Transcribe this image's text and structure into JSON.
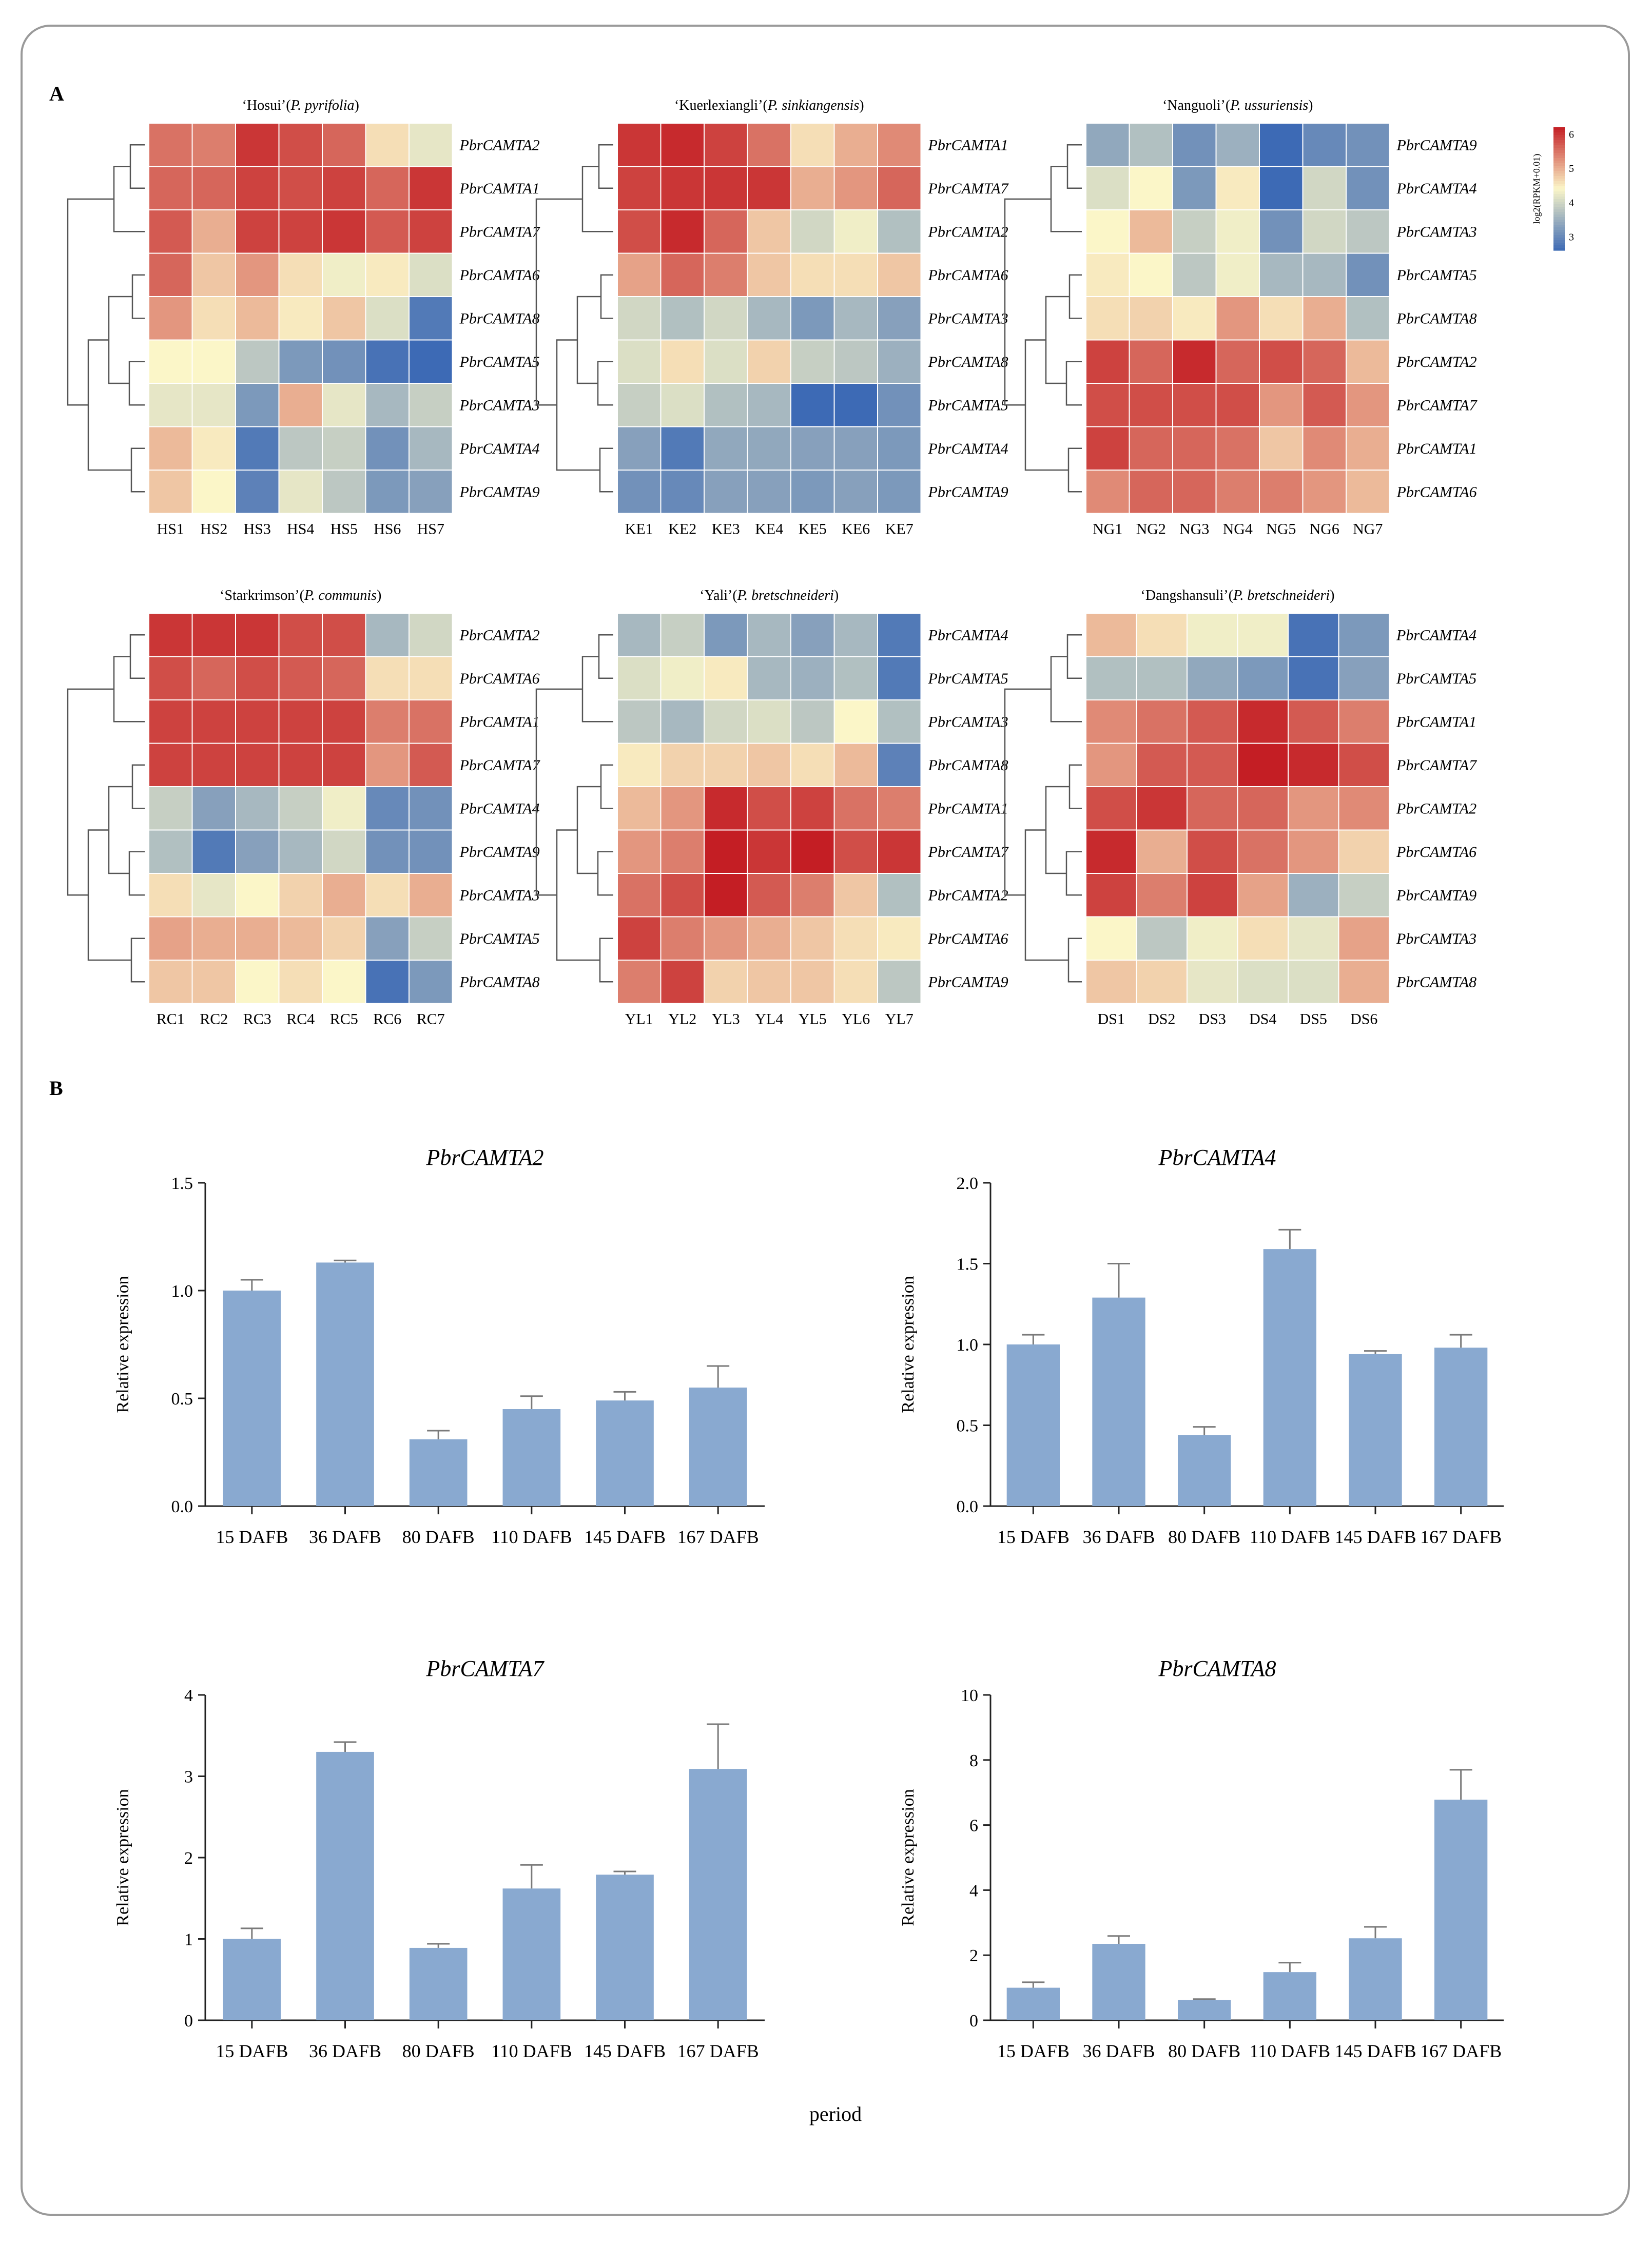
{
  "figure": {
    "panel_a_label": "A",
    "panel_b_label": "B",
    "b_xlabel": "period"
  },
  "colors": {
    "bar": "#89a9d0",
    "heat_low": "#3d6ab5",
    "heat_mid": "#fbf6c8",
    "heat_high": "#c41e24"
  },
  "chart_data": [
    {
      "type": "heatmap",
      "title": "‘Hosui’(P. pyrifolia)",
      "cultivar": "‘Hosui’(",
      "species": "P. pyrifolia",
      "closing": ")",
      "columns": [
        "HS1",
        "HS2",
        "HS3",
        "HS4",
        "HS5",
        "HS6",
        "HS7"
      ],
      "rows": [
        "PbrCAMTA2",
        "PbrCAMTA1",
        "PbrCAMTA7",
        "PbrCAMTA6",
        "PbrCAMTA8",
        "PbrCAMTA5",
        "PbrCAMTA3",
        "PbrCAMTA4",
        "PbrCAMTA9"
      ],
      "values": [
        [
          5.5,
          5.4,
          6.0,
          5.8,
          5.6,
          4.6,
          4.2
        ],
        [
          5.6,
          5.6,
          5.9,
          5.8,
          5.9,
          5.6,
          6.0
        ],
        [
          5.7,
          5.0,
          5.9,
          5.9,
          6.0,
          5.7,
          5.9
        ],
        [
          5.6,
          4.8,
          5.2,
          4.6,
          4.3,
          4.5,
          4.1
        ],
        [
          5.2,
          4.6,
          4.9,
          4.5,
          4.8,
          4.1,
          2.8
        ],
        [
          4.4,
          4.4,
          3.8,
          3.2,
          3.1,
          2.7,
          2.6
        ],
        [
          4.2,
          4.2,
          3.2,
          5.0,
          4.2,
          3.6,
          3.9
        ],
        [
          4.9,
          4.5,
          2.8,
          3.8,
          3.9,
          3.1,
          3.6
        ],
        [
          4.8,
          4.4,
          2.9,
          4.2,
          3.8,
          3.2,
          3.3
        ]
      ],
      "color_range": [
        2.6,
        6.2
      ]
    },
    {
      "type": "heatmap",
      "title": "‘Kuerlexiangli’(P. sinkiangensis)",
      "cultivar": "‘Kuerlexiangli’(",
      "species": "P. sinkiangensis",
      "closing": ")",
      "columns": [
        "KE1",
        "KE2",
        "KE3",
        "KE4",
        "KE5",
        "KE6",
        "KE7"
      ],
      "rows": [
        "PbrCAMTA1",
        "PbrCAMTA7",
        "PbrCAMTA2",
        "PbrCAMTA6",
        "PbrCAMTA3",
        "PbrCAMTA8",
        "PbrCAMTA5",
        "PbrCAMTA4",
        "PbrCAMTA9"
      ],
      "values": [
        [
          6.0,
          6.1,
          5.9,
          5.5,
          4.6,
          5.0,
          5.3
        ],
        [
          5.9,
          6.0,
          6.0,
          6.0,
          5.0,
          5.2,
          5.6
        ],
        [
          5.8,
          6.1,
          5.6,
          4.8,
          4.0,
          4.3,
          3.7
        ],
        [
          5.1,
          5.6,
          5.4,
          4.8,
          4.6,
          4.6,
          4.8
        ],
        [
          4.0,
          3.7,
          4.0,
          3.6,
          3.2,
          3.6,
          3.3
        ],
        [
          4.1,
          4.6,
          4.1,
          4.7,
          3.9,
          3.8,
          3.5
        ],
        [
          3.9,
          4.1,
          3.7,
          3.6,
          2.5,
          2.6,
          3.1
        ],
        [
          3.3,
          2.8,
          3.4,
          3.4,
          3.3,
          3.3,
          3.2
        ],
        [
          3.1,
          3.0,
          3.3,
          3.3,
          3.2,
          3.3,
          3.2
        ]
      ],
      "color_range": [
        2.6,
        6.2
      ]
    },
    {
      "type": "heatmap",
      "title": "‘Nanguoli’(P. ussuriensis)",
      "cultivar": "‘Nanguoli’(",
      "species": "P. ussuriensis",
      "closing": ")",
      "columns": [
        "NG1",
        "NG2",
        "NG3",
        "NG4",
        "NG5",
        "NG6",
        "NG7"
      ],
      "rows": [
        "PbrCAMTA9",
        "PbrCAMTA4",
        "PbrCAMTA3",
        "PbrCAMTA5",
        "PbrCAMTA8",
        "PbrCAMTA2",
        "PbrCAMTA7",
        "PbrCAMTA1",
        "PbrCAMTA6"
      ],
      "values": [
        [
          3.4,
          3.7,
          3.1,
          3.5,
          2.5,
          3.0,
          3.1
        ],
        [
          4.1,
          4.4,
          3.2,
          4.5,
          2.6,
          4.0,
          3.1
        ],
        [
          4.4,
          4.9,
          3.9,
          4.3,
          3.1,
          4.0,
          3.8
        ],
        [
          4.5,
          4.4,
          3.8,
          4.3,
          3.6,
          3.6,
          3.1
        ],
        [
          4.6,
          4.7,
          4.5,
          5.2,
          4.6,
          5.0,
          3.7
        ],
        [
          5.9,
          5.6,
          6.1,
          5.6,
          5.8,
          5.6,
          4.9
        ],
        [
          5.8,
          5.8,
          5.8,
          5.8,
          5.2,
          5.7,
          5.2
        ],
        [
          5.9,
          5.6,
          5.6,
          5.5,
          4.8,
          5.3,
          5.0
        ],
        [
          5.3,
          5.6,
          5.6,
          5.4,
          5.4,
          5.2,
          4.9
        ]
      ],
      "color_range": [
        2.6,
        6.2
      ]
    },
    {
      "type": "heatmap",
      "title": "‘Starkrimson’(P. communis)",
      "cultivar": "‘Starkrimson’(",
      "species": "P. communis",
      "closing": ")",
      "columns": [
        "RC1",
        "RC2",
        "RC3",
        "RC4",
        "RC5",
        "RC6",
        "RC7"
      ],
      "rows": [
        "PbrCAMTA2",
        "PbrCAMTA6",
        "PbrCAMTA1",
        "PbrCAMTA7",
        "PbrCAMTA4",
        "PbrCAMTA9",
        "PbrCAMTA3",
        "PbrCAMTA5",
        "PbrCAMTA8"
      ],
      "values": [
        [
          6.0,
          6.0,
          6.0,
          5.8,
          5.8,
          3.6,
          4.0
        ],
        [
          5.8,
          5.6,
          5.8,
          5.7,
          5.6,
          4.6,
          4.6
        ],
        [
          5.9,
          5.9,
          5.9,
          5.9,
          5.9,
          5.4,
          5.5
        ],
        [
          5.9,
          5.9,
          5.9,
          5.9,
          5.9,
          5.2,
          5.7
        ],
        [
          3.9,
          3.3,
          3.6,
          3.9,
          4.3,
          3.0,
          3.1
        ],
        [
          3.7,
          2.8,
          3.3,
          3.6,
          4.0,
          3.1,
          3.1
        ],
        [
          4.6,
          4.2,
          4.4,
          4.7,
          5.0,
          4.6,
          5.0
        ],
        [
          5.1,
          5.0,
          5.0,
          4.9,
          4.7,
          3.3,
          3.9
        ],
        [
          4.8,
          4.8,
          4.4,
          4.6,
          4.4,
          2.7,
          3.2
        ]
      ],
      "color_range": [
        2.6,
        6.2
      ]
    },
    {
      "type": "heatmap",
      "title": "‘Yali’(P. bretschneideri)",
      "cultivar": "‘Yali’(",
      "species": "P. bretschneideri",
      "closing": ")",
      "columns": [
        "YL1",
        "YL2",
        "YL3",
        "YL4",
        "YL5",
        "YL6",
        "YL7"
      ],
      "rows": [
        "PbrCAMTA4",
        "PbrCAMTA5",
        "PbrCAMTA3",
        "PbrCAMTA8",
        "PbrCAMTA1",
        "PbrCAMTA7",
        "PbrCAMTA2",
        "PbrCAMTA6",
        "PbrCAMTA9"
      ],
      "values": [
        [
          3.6,
          3.9,
          3.2,
          3.6,
          3.3,
          3.6,
          2.8
        ],
        [
          4.1,
          4.3,
          4.5,
          3.6,
          3.5,
          3.7,
          2.8
        ],
        [
          3.8,
          3.6,
          4.0,
          4.1,
          3.8,
          4.4,
          3.7
        ],
        [
          4.5,
          4.7,
          4.7,
          4.8,
          4.6,
          4.9,
          2.9
        ],
        [
          4.9,
          5.2,
          6.1,
          5.8,
          5.9,
          5.5,
          5.4
        ],
        [
          5.2,
          5.4,
          6.2,
          6.0,
          6.2,
          5.8,
          6.0
        ],
        [
          5.5,
          5.8,
          6.2,
          5.7,
          5.4,
          4.8,
          3.7
        ],
        [
          5.9,
          5.4,
          5.2,
          5.0,
          4.8,
          4.6,
          4.5
        ],
        [
          5.4,
          5.9,
          4.7,
          4.8,
          4.8,
          4.6,
          3.8
        ]
      ],
      "color_range": [
        2.6,
        6.2
      ]
    },
    {
      "type": "heatmap",
      "title": "‘Dangshansuli’(P. bretschneideri)",
      "cultivar": "‘Dangshansuli’(",
      "species": "P. bretschneideri",
      "closing": ")",
      "columns": [
        "DS1",
        "DS2",
        "DS3",
        "DS4",
        "DS5",
        "DS6"
      ],
      "rows": [
        "PbrCAMTA4",
        "PbrCAMTA5",
        "PbrCAMTA1",
        "PbrCAMTA7",
        "PbrCAMTA2",
        "PbrCAMTA6",
        "PbrCAMTA9",
        "PbrCAMTA3",
        "PbrCAMTA8"
      ],
      "values": [
        [
          4.9,
          4.6,
          4.3,
          4.3,
          2.7,
          3.2
        ],
        [
          3.7,
          3.7,
          3.4,
          3.2,
          2.7,
          3.3
        ],
        [
          5.3,
          5.5,
          5.7,
          6.1,
          5.7,
          5.4
        ],
        [
          5.2,
          5.7,
          5.7,
          6.2,
          6.1,
          5.8
        ],
        [
          5.8,
          6.0,
          5.6,
          5.6,
          5.2,
          5.3
        ],
        [
          6.1,
          5.0,
          5.8,
          5.5,
          5.2,
          4.7
        ],
        [
          5.9,
          5.4,
          5.9,
          5.1,
          3.5,
          3.9
        ],
        [
          4.4,
          3.8,
          4.3,
          4.6,
          4.2,
          5.1
        ],
        [
          4.8,
          4.7,
          4.2,
          4.1,
          4.1,
          5.0
        ]
      ],
      "color_range": [
        2.6,
        6.2
      ]
    },
    {
      "type": "colorbar",
      "title": "log2(RPKM+0.01)",
      "ticks": [
        3,
        4,
        5,
        6
      ],
      "range": [
        2.6,
        6.2
      ]
    },
    {
      "type": "bar",
      "title": "PbrCAMTA2",
      "ylabel": "Relative expression",
      "categories": [
        "15 DAFB",
        "36 DAFB",
        "80 DAFB",
        "110 DAFB",
        "145 DAFB",
        "167 DAFB"
      ],
      "values": [
        1.0,
        1.13,
        0.31,
        0.45,
        0.49,
        0.55
      ],
      "errors": [
        0.05,
        0.01,
        0.04,
        0.06,
        0.04,
        0.1
      ],
      "ylim": [
        0,
        1.5
      ],
      "yticks": [
        "0.0",
        "0.5",
        "1.0",
        "1.5"
      ]
    },
    {
      "type": "bar",
      "title": "PbrCAMTA4",
      "ylabel": "Relative expression",
      "categories": [
        "15 DAFB",
        "36 DAFB",
        "80 DAFB",
        "110 DAFB",
        "145 DAFB",
        "167 DAFB"
      ],
      "values": [
        1.0,
        1.29,
        0.44,
        1.59,
        0.94,
        0.98
      ],
      "errors": [
        0.06,
        0.21,
        0.05,
        0.12,
        0.02,
        0.08
      ],
      "ylim": [
        0,
        2.0
      ],
      "yticks": [
        "0.0",
        "0.5",
        "1.0",
        "1.5",
        "2.0"
      ]
    },
    {
      "type": "bar",
      "title": "PbrCAMTA7",
      "ylabel": "Relative expression",
      "categories": [
        "15 DAFB",
        "36 DAFB",
        "80 DAFB",
        "110 DAFB",
        "145 DAFB",
        "167 DAFB"
      ],
      "values": [
        1.0,
        3.3,
        0.89,
        1.62,
        1.79,
        3.09
      ],
      "errors": [
        0.13,
        0.12,
        0.05,
        0.29,
        0.04,
        0.55
      ],
      "ylim": [
        0,
        4
      ],
      "yticks": [
        "0",
        "1",
        "2",
        "3",
        "4"
      ]
    },
    {
      "type": "bar",
      "title": "PbrCAMTA8",
      "ylabel": "Relative expression",
      "categories": [
        "15 DAFB",
        "36 DAFB",
        "80 DAFB",
        "110 DAFB",
        "145 DAFB",
        "167 DAFB"
      ],
      "values": [
        1.0,
        2.35,
        0.62,
        1.48,
        2.52,
        6.78
      ],
      "errors": [
        0.17,
        0.24,
        0.03,
        0.29,
        0.35,
        0.92
      ],
      "ylim": [
        0,
        10
      ],
      "yticks": [
        "0",
        "2",
        "4",
        "6",
        "8",
        "10"
      ]
    }
  ]
}
